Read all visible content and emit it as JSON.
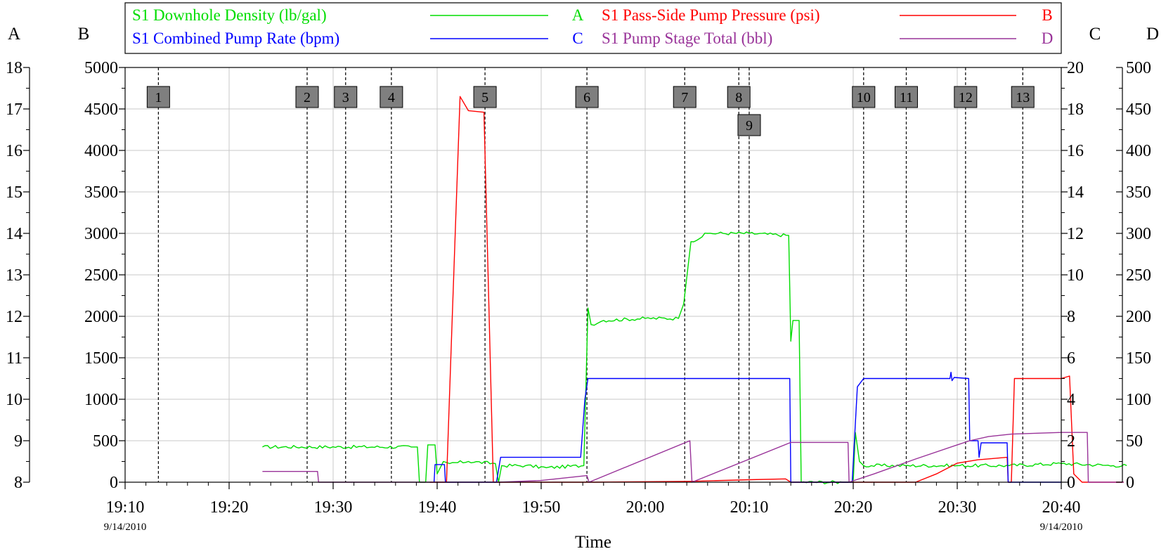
{
  "chart_data": {
    "type": "line",
    "xlabel": "Time",
    "x_range": [
      "19:10",
      "20:40"
    ],
    "x_ticks": [
      "19:10",
      "19:20",
      "19:30",
      "19:40",
      "19:50",
      "20:00",
      "20:10",
      "20:20",
      "20:30",
      "20:40"
    ],
    "date_left": "9/14/2010",
    "date_right": "9/14/2010",
    "grid": true,
    "axes": {
      "A": {
        "letter": "A",
        "side": "left-outer",
        "range": [
          8,
          18
        ],
        "ticks": [
          "8",
          "9",
          "10",
          "11",
          "12",
          "13",
          "14",
          "15",
          "16",
          "17",
          "18"
        ],
        "color": "#000000"
      },
      "B": {
        "letter": "B",
        "side": "left-inner",
        "range": [
          0,
          5000
        ],
        "ticks": [
          "0",
          "500",
          "1000",
          "1500",
          "2000",
          "2500",
          "3000",
          "3500",
          "4000",
          "4500",
          "5000"
        ],
        "color": "#000000"
      },
      "C": {
        "letter": "C",
        "side": "right-inner",
        "range": [
          0,
          20
        ],
        "ticks": [
          "0",
          "2",
          "4",
          "6",
          "8",
          "10",
          "12",
          "14",
          "16",
          "18",
          "20"
        ],
        "color": "#000000"
      },
      "D": {
        "letter": "D",
        "side": "right-outer",
        "range": [
          0,
          500
        ],
        "ticks": [
          "0",
          "50",
          "100",
          "150",
          "200",
          "250",
          "300",
          "350",
          "400",
          "450",
          "500"
        ],
        "color": "#000000"
      }
    },
    "legend": [
      {
        "name": "S1 Downhole Density (lb/gal)",
        "axis_letter": "A",
        "color": "#00dd00"
      },
      {
        "name": "S1 Pass-Side Pump Pressure (psi)",
        "axis_letter": "B",
        "color": "#ff0000"
      },
      {
        "name": "S1 Combined Pump Rate (bpm)",
        "axis_letter": "C",
        "color": "#0000ff"
      },
      {
        "name": "S1 Pump Stage Total (bbl)",
        "axis_letter": "D",
        "color": "#993399"
      }
    ],
    "events": [
      {
        "label": "1",
        "time": "19:13.2"
      },
      {
        "label": "2",
        "time": "19:27.5"
      },
      {
        "label": "3",
        "time": "19:31.2"
      },
      {
        "label": "4",
        "time": "19:35.6"
      },
      {
        "label": "5",
        "time": "19:44.6"
      },
      {
        "label": "6",
        "time": "19:54.4"
      },
      {
        "label": "7",
        "time": "20:03.8"
      },
      {
        "label": "8",
        "time": "20:09.0"
      },
      {
        "label": "9",
        "time": "20:10.0"
      },
      {
        "label": "10",
        "time": "20:21.0"
      },
      {
        "label": "11",
        "time": "20:25.1"
      },
      {
        "label": "12",
        "time": "20:30.8"
      },
      {
        "label": "13",
        "time": "20:36.3"
      }
    ],
    "series": [
      {
        "name": "S1 Downhole Density (lb/gal)",
        "axis": "A",
        "color": "#00dd00",
        "noise": 0.04,
        "points": [
          [
            13.2,
            8.85
          ],
          [
            27.5,
            8.85
          ],
          [
            28.1,
            8.85
          ],
          [
            28.3,
            8.0
          ],
          [
            28.9,
            8.0
          ],
          [
            29.1,
            8.9
          ],
          [
            29.8,
            8.9
          ],
          [
            30.0,
            8.2
          ],
          [
            30.6,
            8.5
          ],
          [
            31.2,
            8.45
          ],
          [
            33.0,
            8.5
          ],
          [
            35.6,
            8.45
          ],
          [
            35.9,
            8.0
          ],
          [
            36.2,
            8.4
          ],
          [
            38.5,
            8.4
          ],
          [
            40.5,
            8.35
          ],
          [
            44.1,
            8.4
          ],
          [
            44.5,
            12.2
          ],
          [
            44.8,
            11.8
          ],
          [
            46.0,
            11.9
          ],
          [
            50.0,
            11.95
          ],
          [
            53.2,
            11.95
          ],
          [
            53.7,
            12.3
          ],
          [
            54.4,
            13.8
          ],
          [
            56.0,
            14.0
          ],
          [
            60.0,
            14.0
          ],
          [
            63.8,
            13.95
          ],
          [
            64.0,
            11.4
          ],
          [
            64.2,
            11.9
          ],
          [
            64.8,
            11.9
          ],
          [
            65.0,
            8.0
          ],
          [
            69.0,
            8.0
          ],
          [
            70.0,
            8.0
          ],
          [
            70.2,
            9.2
          ],
          [
            70.6,
            8.5
          ],
          [
            71.0,
            8.4
          ],
          [
            75.0,
            8.4
          ],
          [
            80.0,
            8.4
          ],
          [
            85.0,
            8.4
          ],
          [
            90.0,
            8.45
          ],
          [
            95.0,
            8.4
          ],
          [
            96.3,
            8.4
          ]
        ]
      },
      {
        "name": "S1 Pass-Side Pump Pressure (psi)",
        "axis": "B",
        "color": "#ff0000",
        "noise": 0,
        "points": [
          [
            29.3,
            0
          ],
          [
            30.9,
            0
          ],
          [
            31.4,
            1800
          ],
          [
            32.2,
            4650
          ],
          [
            33.0,
            4480
          ],
          [
            34.5,
            4460
          ],
          [
            34.9,
            2500
          ],
          [
            35.4,
            0
          ],
          [
            45.0,
            0
          ],
          [
            54.4,
            10
          ],
          [
            60.0,
            30
          ],
          [
            63.5,
            40
          ],
          [
            64.0,
            0
          ],
          [
            69.5,
            0
          ],
          [
            76.0,
            0
          ],
          [
            78.0,
            100
          ],
          [
            80.0,
            230
          ],
          [
            82.0,
            270
          ],
          [
            84.8,
            300
          ],
          [
            84.9,
            0
          ],
          [
            85.2,
            0
          ],
          [
            85.5,
            1250
          ],
          [
            90.0,
            1250
          ],
          [
            90.8,
            1280
          ],
          [
            91.2,
            100
          ],
          [
            92.0,
            0
          ],
          [
            96.0,
            0
          ]
        ]
      },
      {
        "name": "S1 Combined Pump Rate (bpm)",
        "axis": "C",
        "color": "#0000ff",
        "noise": 0,
        "points": [
          [
            29.7,
            0
          ],
          [
            29.8,
            0.85
          ],
          [
            30.7,
            0.85
          ],
          [
            30.8,
            0
          ],
          [
            35.7,
            0
          ],
          [
            36.1,
            1.2
          ],
          [
            43.8,
            1.2
          ],
          [
            44.2,
            4.0
          ],
          [
            44.5,
            5.0
          ],
          [
            63.9,
            5.0
          ],
          [
            64.0,
            0
          ],
          [
            69.9,
            0
          ],
          [
            70.4,
            4.6
          ],
          [
            71.0,
            5.0
          ],
          [
            79.3,
            5.0
          ],
          [
            79.4,
            5.3
          ],
          [
            79.5,
            4.9
          ],
          [
            79.7,
            5.05
          ],
          [
            81.1,
            5.0
          ],
          [
            81.2,
            2.0
          ],
          [
            81.4,
            2.0
          ],
          [
            81.8,
            2.0
          ],
          [
            82.0,
            2.0
          ],
          [
            82.1,
            1.2
          ],
          [
            82.3,
            1.9
          ],
          [
            84.8,
            1.9
          ],
          [
            84.9,
            0
          ],
          [
            90.0,
            0
          ]
        ]
      },
      {
        "name": "S1 Pump Stage Total (bbl)",
        "axis": "D",
        "color": "#993399",
        "noise": 0,
        "points": [
          [
            13.2,
            13
          ],
          [
            18.5,
            13
          ],
          [
            18.6,
            0
          ],
          [
            30.0,
            0
          ],
          [
            36.0,
            0
          ],
          [
            40.0,
            2
          ],
          [
            44.4,
            8
          ],
          [
            44.6,
            0
          ],
          [
            54.3,
            50
          ],
          [
            54.5,
            0
          ],
          [
            64.0,
            48
          ],
          [
            69.5,
            48
          ],
          [
            69.6,
            0
          ],
          [
            72.0,
            10
          ],
          [
            76.0,
            28
          ],
          [
            80.0,
            45
          ],
          [
            81.2,
            50
          ],
          [
            83.0,
            55
          ],
          [
            85.2,
            58
          ],
          [
            90.0,
            60
          ],
          [
            92.5,
            60
          ],
          [
            92.6,
            0
          ],
          [
            96.0,
            0
          ]
        ]
      }
    ]
  }
}
